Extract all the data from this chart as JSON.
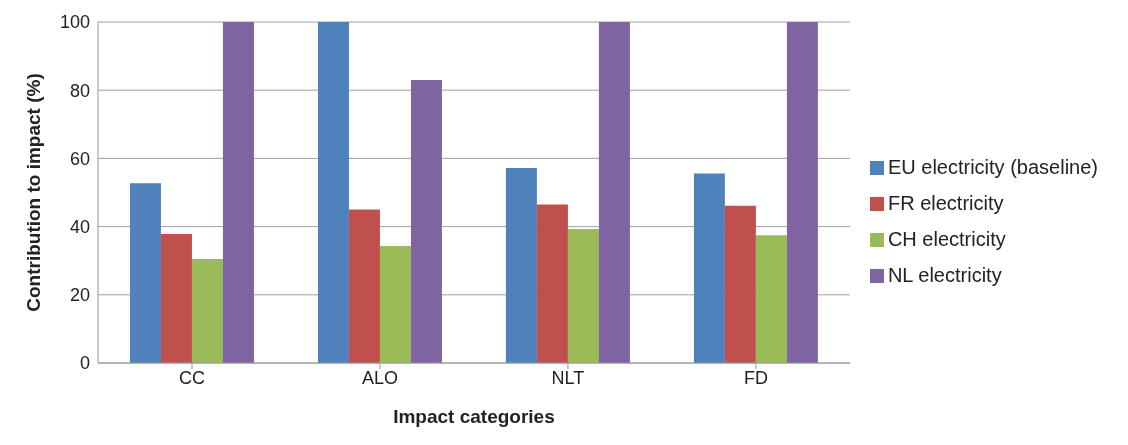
{
  "chart_data": {
    "type": "bar",
    "xlabel": "Impact categories",
    "ylabel": "Contribution to impact (%)",
    "categories": [
      "CC",
      "ALO",
      "NLT",
      "FD"
    ],
    "series": [
      {
        "name": "EU electricity (baseline)",
        "color": "#4f81bd",
        "values": [
          52.7,
          100,
          57.2,
          55.6
        ]
      },
      {
        "name": "FR electricity",
        "color": "#c0504d",
        "values": [
          37.8,
          45,
          46.5,
          46.1
        ]
      },
      {
        "name": "CH electricity",
        "color": "#9bbb59",
        "values": [
          30.5,
          34.3,
          39.3,
          37.5
        ]
      },
      {
        "name": "NL electricity",
        "color": "#8064a2",
        "values": [
          100,
          83,
          100,
          100
        ]
      }
    ],
    "ylim": [
      0,
      100
    ],
    "yticks": [
      0,
      20,
      40,
      60,
      80,
      100
    ],
    "grid": "y",
    "legend": "right"
  }
}
